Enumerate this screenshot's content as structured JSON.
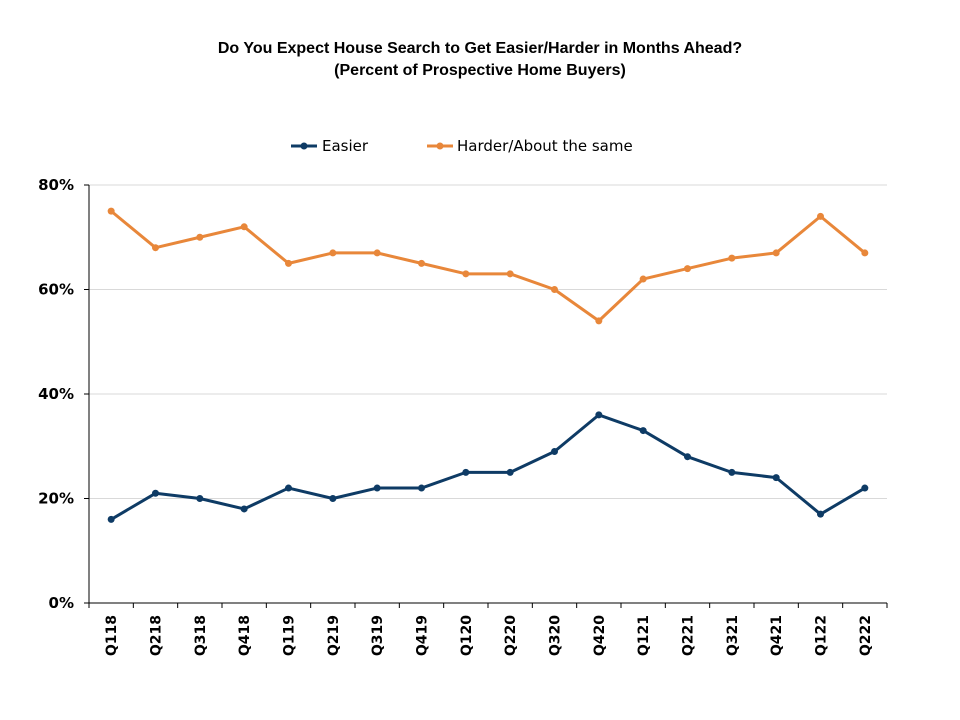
{
  "chart_data": {
    "type": "line",
    "title": "Do You Expect House Search to Get Easier/Harder in Months Ahead?",
    "subtitle": "(Percent of Prospective Home Buyers)",
    "x": [
      "Q118",
      "Q218",
      "Q318",
      "Q418",
      "Q119",
      "Q219",
      "Q319",
      "Q419",
      "Q120",
      "Q220",
      "Q320",
      "Q420",
      "Q121",
      "Q221",
      "Q321",
      "Q421",
      "Q122",
      "Q222"
    ],
    "series": [
      {
        "name": "Easier",
        "color": "#0e3b65",
        "values": [
          16,
          21,
          20,
          18,
          22,
          20,
          22,
          22,
          25,
          25,
          29,
          36,
          33,
          28,
          25,
          24,
          17,
          22
        ]
      },
      {
        "name": "Harder/About the same",
        "color": "#e8873a",
        "values": [
          75,
          68,
          70,
          72,
          65,
          67,
          67,
          65,
          63,
          63,
          60,
          54,
          62,
          64,
          66,
          67,
          74,
          67
        ]
      }
    ],
    "ylim": [
      0,
      80
    ],
    "yticks": [
      0,
      20,
      40,
      60,
      80
    ],
    "ytick_labels": [
      "0%",
      "20%",
      "40%",
      "60%",
      "80%"
    ],
    "xlabel": "",
    "ylabel": "",
    "grid": "horizontal",
    "legend_position": "top-center"
  }
}
